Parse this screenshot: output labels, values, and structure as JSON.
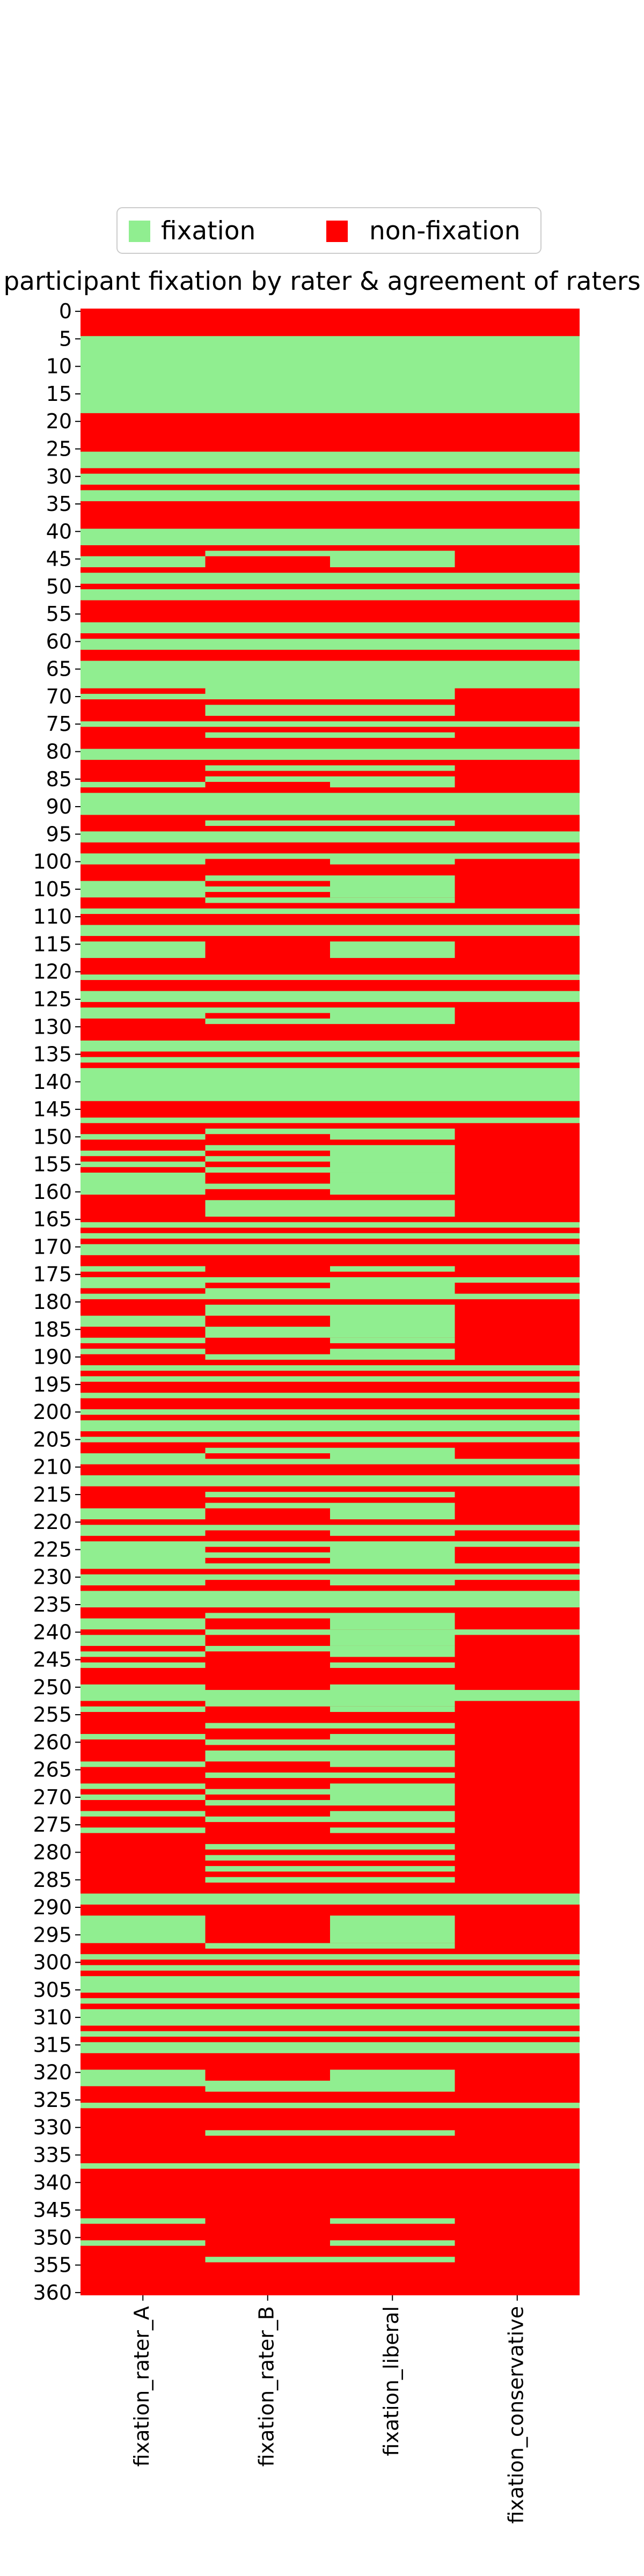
{
  "chart_data": {
    "type": "heatmap",
    "title": "participant fixation by rater & agreement of raters",
    "xlabel": "",
    "ylabel": "",
    "columns": [
      "fixation_rater_A",
      "fixation_rater_B",
      "fixation_liberal",
      "fixation_conservative"
    ],
    "row_count": 361,
    "y_ticks": [
      0,
      5,
      10,
      15,
      20,
      25,
      30,
      35,
      40,
      45,
      50,
      55,
      60,
      65,
      70,
      75,
      80,
      85,
      90,
      95,
      100,
      105,
      110,
      115,
      120,
      125,
      130,
      135,
      140,
      145,
      150,
      155,
      160,
      165,
      170,
      175,
      180,
      185,
      190,
      195,
      200,
      205,
      210,
      215,
      220,
      225,
      230,
      235,
      240,
      245,
      250,
      255,
      260,
      265,
      270,
      275,
      280,
      285,
      290,
      295,
      300,
      305,
      310,
      315,
      320,
      325,
      330,
      335,
      340,
      345,
      350,
      355,
      360
    ],
    "categories": {
      "fixation": 1,
      "non-fixation": 0
    },
    "legend": {
      "placement": "top-center",
      "entries": [
        {
          "label": "fixation",
          "color": "#90ee90"
        },
        {
          "label": "non-fixation",
          "color": "#ff0000"
        }
      ]
    },
    "colors": {
      "fixation": "#90ee90",
      "non-fixation": "#ff0000"
    },
    "fixation_intervals": {
      "fixation_rater_A": [
        [
          5,
          18
        ],
        [
          26,
          28
        ],
        [
          30,
          31
        ],
        [
          33,
          34
        ],
        [
          40,
          42
        ],
        [
          45,
          46
        ],
        [
          48,
          49
        ],
        [
          51,
          52
        ],
        [
          57,
          58
        ],
        [
          60,
          61
        ],
        [
          64,
          68
        ],
        [
          70,
          70
        ],
        [
          75,
          75
        ],
        [
          80,
          81
        ],
        [
          86,
          86
        ],
        [
          88,
          91
        ],
        [
          95,
          96
        ],
        [
          99,
          100
        ],
        [
          104,
          106
        ],
        [
          109,
          109
        ],
        [
          112,
          113
        ],
        [
          115,
          117
        ],
        [
          121,
          121
        ],
        [
          124,
          125
        ],
        [
          127,
          128
        ],
        [
          133,
          134
        ],
        [
          136,
          136
        ],
        [
          138,
          143
        ],
        [
          147,
          147
        ],
        [
          150,
          150
        ],
        [
          153,
          153
        ],
        [
          155,
          155
        ],
        [
          157,
          160
        ],
        [
          166,
          166
        ],
        [
          168,
          168
        ],
        [
          170,
          171
        ],
        [
          174,
          174
        ],
        [
          176,
          177
        ],
        [
          179,
          179
        ],
        [
          183,
          184
        ],
        [
          187,
          187
        ],
        [
          189,
          189
        ],
        [
          192,
          192
        ],
        [
          194,
          194
        ],
        [
          197,
          197
        ],
        [
          200,
          200
        ],
        [
          202,
          203
        ],
        [
          205,
          205
        ],
        [
          208,
          209
        ],
        [
          212,
          213
        ],
        [
          218,
          219
        ],
        [
          221,
          222
        ],
        [
          224,
          228
        ],
        [
          230,
          231
        ],
        [
          233,
          235
        ],
        [
          238,
          239
        ],
        [
          241,
          242
        ],
        [
          244,
          244
        ],
        [
          246,
          246
        ],
        [
          250,
          252
        ],
        [
          254,
          254
        ],
        [
          259,
          259
        ],
        [
          264,
          264
        ],
        [
          268,
          268
        ],
        [
          270,
          270
        ],
        [
          273,
          273
        ],
        [
          276,
          276
        ],
        [
          288,
          289
        ],
        [
          292,
          296
        ],
        [
          299,
          299
        ],
        [
          301,
          301
        ],
        [
          303,
          305
        ],
        [
          307,
          307
        ],
        [
          309,
          311
        ],
        [
          313,
          313
        ],
        [
          315,
          316
        ],
        [
          320,
          322
        ],
        [
          326,
          326
        ],
        [
          337,
          337
        ],
        [
          347,
          347
        ],
        [
          351,
          351
        ]
      ],
      "fixation_rater_B": [
        [
          5,
          18
        ],
        [
          26,
          28
        ],
        [
          30,
          31
        ],
        [
          33,
          34
        ],
        [
          40,
          42
        ],
        [
          44,
          44
        ],
        [
          48,
          49
        ],
        [
          51,
          52
        ],
        [
          57,
          58
        ],
        [
          60,
          61
        ],
        [
          64,
          70
        ],
        [
          72,
          73
        ],
        [
          75,
          75
        ],
        [
          77,
          77
        ],
        [
          80,
          81
        ],
        [
          83,
          83
        ],
        [
          85,
          85
        ],
        [
          88,
          91
        ],
        [
          93,
          93
        ],
        [
          95,
          96
        ],
        [
          99,
          99
        ],
        [
          103,
          103
        ],
        [
          105,
          105
        ],
        [
          107,
          107
        ],
        [
          109,
          109
        ],
        [
          112,
          113
        ],
        [
          121,
          121
        ],
        [
          124,
          125
        ],
        [
          127,
          127
        ],
        [
          129,
          129
        ],
        [
          133,
          134
        ],
        [
          136,
          136
        ],
        [
          138,
          143
        ],
        [
          147,
          147
        ],
        [
          149,
          149
        ],
        [
          152,
          152
        ],
        [
          154,
          154
        ],
        [
          156,
          156
        ],
        [
          159,
          159
        ],
        [
          162,
          164
        ],
        [
          166,
          166
        ],
        [
          168,
          168
        ],
        [
          170,
          171
        ],
        [
          176,
          176
        ],
        [
          178,
          179
        ],
        [
          181,
          182
        ],
        [
          185,
          186
        ],
        [
          190,
          190
        ],
        [
          192,
          192
        ],
        [
          194,
          194
        ],
        [
          197,
          197
        ],
        [
          200,
          200
        ],
        [
          202,
          203
        ],
        [
          205,
          205
        ],
        [
          207,
          207
        ],
        [
          209,
          209
        ],
        [
          212,
          213
        ],
        [
          215,
          215
        ],
        [
          217,
          217
        ],
        [
          221,
          221
        ],
        [
          224,
          224
        ],
        [
          226,
          226
        ],
        [
          228,
          228
        ],
        [
          230,
          230
        ],
        [
          233,
          235
        ],
        [
          237,
          237
        ],
        [
          240,
          240
        ],
        [
          243,
          243
        ],
        [
          251,
          253
        ],
        [
          257,
          257
        ],
        [
          260,
          260
        ],
        [
          262,
          263
        ],
        [
          266,
          266
        ],
        [
          269,
          269
        ],
        [
          271,
          271
        ],
        [
          274,
          274
        ],
        [
          279,
          279
        ],
        [
          281,
          281
        ],
        [
          283,
          283
        ],
        [
          285,
          285
        ],
        [
          288,
          289
        ],
        [
          297,
          297
        ],
        [
          299,
          299
        ],
        [
          301,
          301
        ],
        [
          303,
          305
        ],
        [
          307,
          307
        ],
        [
          309,
          311
        ],
        [
          313,
          313
        ],
        [
          315,
          316
        ],
        [
          322,
          323
        ],
        [
          326,
          326
        ],
        [
          331,
          331
        ],
        [
          337,
          337
        ],
        [
          354,
          354
        ]
      ],
      "fixation_liberal": [
        [
          5,
          18
        ],
        [
          26,
          28
        ],
        [
          30,
          31
        ],
        [
          33,
          34
        ],
        [
          40,
          42
        ],
        [
          44,
          46
        ],
        [
          48,
          49
        ],
        [
          51,
          52
        ],
        [
          57,
          58
        ],
        [
          60,
          61
        ],
        [
          64,
          70
        ],
        [
          72,
          73
        ],
        [
          75,
          75
        ],
        [
          77,
          77
        ],
        [
          80,
          81
        ],
        [
          83,
          83
        ],
        [
          85,
          86
        ],
        [
          88,
          91
        ],
        [
          93,
          93
        ],
        [
          95,
          96
        ],
        [
          99,
          100
        ],
        [
          103,
          106
        ],
        [
          107,
          107
        ],
        [
          109,
          109
        ],
        [
          112,
          113
        ],
        [
          115,
          117
        ],
        [
          121,
          121
        ],
        [
          124,
          125
        ],
        [
          127,
          129
        ],
        [
          133,
          134
        ],
        [
          136,
          136
        ],
        [
          138,
          143
        ],
        [
          147,
          147
        ],
        [
          149,
          150
        ],
        [
          152,
          156
        ],
        [
          157,
          160
        ],
        [
          162,
          164
        ],
        [
          166,
          166
        ],
        [
          168,
          168
        ],
        [
          170,
          171
        ],
        [
          174,
          174
        ],
        [
          176,
          179
        ],
        [
          181,
          186
        ],
        [
          187,
          187
        ],
        [
          189,
          190
        ],
        [
          192,
          192
        ],
        [
          194,
          194
        ],
        [
          197,
          197
        ],
        [
          200,
          200
        ],
        [
          202,
          203
        ],
        [
          205,
          205
        ],
        [
          207,
          209
        ],
        [
          212,
          213
        ],
        [
          215,
          215
        ],
        [
          217,
          219
        ],
        [
          221,
          222
        ],
        [
          224,
          228
        ],
        [
          230,
          231
        ],
        [
          233,
          235
        ],
        [
          237,
          239
        ],
        [
          240,
          242
        ],
        [
          243,
          244
        ],
        [
          246,
          246
        ],
        [
          250,
          253
        ],
        [
          254,
          254
        ],
        [
          257,
          257
        ],
        [
          259,
          260
        ],
        [
          262,
          264
        ],
        [
          266,
          266
        ],
        [
          268,
          271
        ],
        [
          273,
          274
        ],
        [
          276,
          276
        ],
        [
          279,
          279
        ],
        [
          281,
          281
        ],
        [
          283,
          283
        ],
        [
          285,
          285
        ],
        [
          288,
          289
        ],
        [
          292,
          296
        ],
        [
          297,
          297
        ],
        [
          299,
          299
        ],
        [
          301,
          301
        ],
        [
          303,
          305
        ],
        [
          307,
          307
        ],
        [
          309,
          311
        ],
        [
          313,
          313
        ],
        [
          315,
          316
        ],
        [
          320,
          323
        ],
        [
          326,
          326
        ],
        [
          331,
          331
        ],
        [
          337,
          337
        ],
        [
          347,
          347
        ],
        [
          351,
          351
        ],
        [
          354,
          354
        ]
      ],
      "fixation_conservative": [
        [
          5,
          18
        ],
        [
          26,
          28
        ],
        [
          30,
          31
        ],
        [
          33,
          34
        ],
        [
          40,
          42
        ],
        [
          48,
          49
        ],
        [
          51,
          52
        ],
        [
          57,
          58
        ],
        [
          60,
          61
        ],
        [
          64,
          68
        ],
        [
          75,
          75
        ],
        [
          80,
          81
        ],
        [
          88,
          91
        ],
        [
          95,
          96
        ],
        [
          99,
          99
        ],
        [
          109,
          109
        ],
        [
          112,
          113
        ],
        [
          121,
          121
        ],
        [
          124,
          125
        ],
        [
          133,
          134
        ],
        [
          136,
          136
        ],
        [
          138,
          143
        ],
        [
          147,
          147
        ],
        [
          166,
          166
        ],
        [
          168,
          168
        ],
        [
          170,
          171
        ],
        [
          176,
          176
        ],
        [
          179,
          179
        ],
        [
          192,
          192
        ],
        [
          194,
          194
        ],
        [
          197,
          197
        ],
        [
          200,
          200
        ],
        [
          202,
          203
        ],
        [
          205,
          205
        ],
        [
          209,
          209
        ],
        [
          212,
          213
        ],
        [
          221,
          221
        ],
        [
          224,
          224
        ],
        [
          228,
          228
        ],
        [
          230,
          230
        ],
        [
          233,
          235
        ],
        [
          240,
          240
        ],
        [
          251,
          252
        ],
        [
          288,
          289
        ],
        [
          299,
          299
        ],
        [
          301,
          301
        ],
        [
          303,
          305
        ],
        [
          307,
          307
        ],
        [
          309,
          311
        ],
        [
          313,
          313
        ],
        [
          315,
          316
        ],
        [
          326,
          326
        ],
        [
          337,
          337
        ]
      ]
    }
  }
}
